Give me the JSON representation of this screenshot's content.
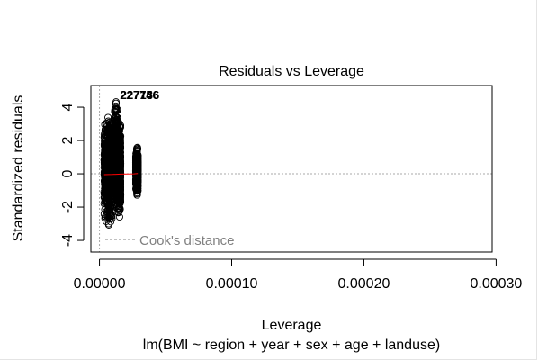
{
  "chart_data": {
    "type": "scatter",
    "title": "Residuals vs Leverage",
    "xlabel": "Leverage",
    "ylabel": "Standardized residuals",
    "subtitle": "lm(BMI ~ region + year + sex + age + landuse)",
    "xlim": [
      -6.5e-06,
      0.000297
    ],
    "ylim": [
      -4.7,
      5.3
    ],
    "x_ticks": [
      0.0,
      0.0001,
      0.0002,
      0.0003
    ],
    "x_tick_labels": [
      "0.00000",
      "0.00010",
      "0.00020",
      "0.00030"
    ],
    "y_ticks": [
      -4,
      -2,
      0,
      2,
      4
    ],
    "y_tick_labels": [
      "-4",
      "-2",
      "0",
      "2",
      "4"
    ],
    "point_color": "#000000",
    "smooth_color": "#ff0000",
    "clusters": [
      {
        "x_range": [
          3.5e-06,
          1e-05
        ],
        "y_range": [
          -3.6,
          3.9
        ]
      },
      {
        "x_range": [
          1.1e-05,
          1.4e-05
        ],
        "y_range": [
          -2.6,
          4.8
        ]
      },
      {
        "x_range": [
          1.4e-05,
          1.6e-05
        ],
        "y_range": [
          -3.0,
          3.5
        ]
      },
      {
        "x_range": [
          2.75e-05,
          2.92e-05
        ],
        "y_range": [
          -1.5,
          1.8
        ]
      }
    ],
    "smooth_line": {
      "x": [
        3.5e-06,
        1e-05,
        1.6e-05,
        2.1e-05,
        2.6e-05,
        2.9e-05
      ],
      "y": [
        -0.05,
        -0.04,
        -0.02,
        -0.01,
        0.0,
        0.02
      ]
    },
    "labeled_points": [
      {
        "label": "227746",
        "x": 1.28e-05,
        "y": 4.7
      },
      {
        "label": "227756",
        "x": 1.29e-05,
        "y": 4.7
      },
      {
        "label": "227136",
        "x": 1.31e-05,
        "y": 4.7
      }
    ],
    "legend": {
      "position": "bottom-left",
      "entries": [
        {
          "label": "Cook's distance",
          "line": "dashed",
          "color": "#808080"
        }
      ]
    }
  }
}
